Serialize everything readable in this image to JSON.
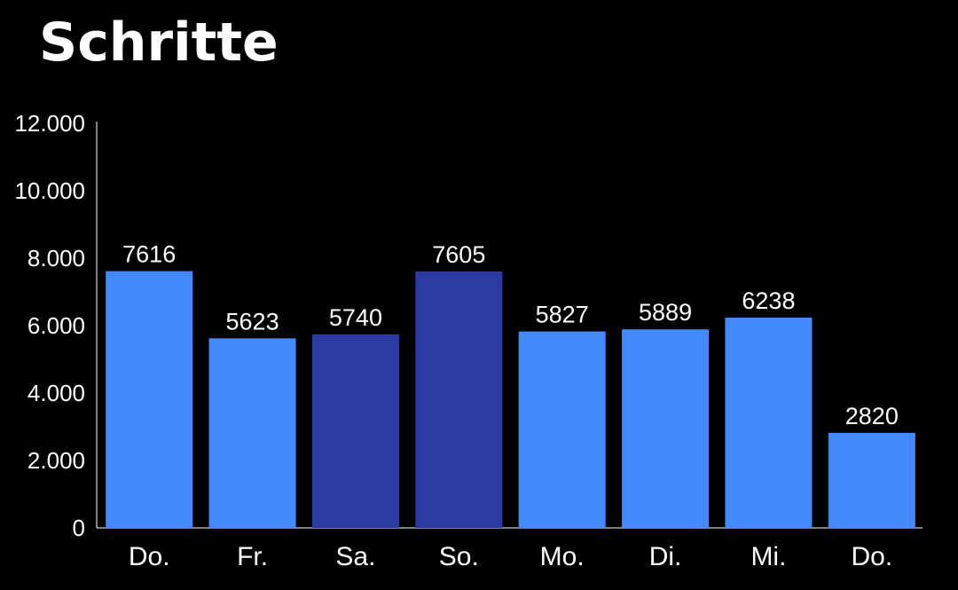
{
  "chart_data": {
    "type": "bar",
    "title": "Schritte",
    "xlabel": "",
    "ylabel": "",
    "ylim": [
      0,
      12000
    ],
    "y_ticks": [
      0,
      2000,
      4000,
      6000,
      8000,
      10000,
      12000
    ],
    "y_tick_labels": [
      "0",
      "2.000",
      "4.000",
      "6.000",
      "8.000",
      "10.000",
      "12.000"
    ],
    "categories": [
      "Do.",
      "Fr.",
      "Sa.",
      "So.",
      "Mo.",
      "Di.",
      "Mi.",
      "Do."
    ],
    "values": [
      7616,
      5623,
      5740,
      7605,
      5827,
      5889,
      6238,
      2820
    ],
    "value_labels": [
      "7616",
      "5623",
      "5740",
      "7605",
      "5827",
      "5889",
      "6238",
      "2820"
    ],
    "bar_colors": [
      "#448aff",
      "#448aff",
      "#2c3aa3",
      "#2c3aa3",
      "#448aff",
      "#448aff",
      "#448aff",
      "#448aff"
    ],
    "grid": false,
    "legend": "none"
  }
}
